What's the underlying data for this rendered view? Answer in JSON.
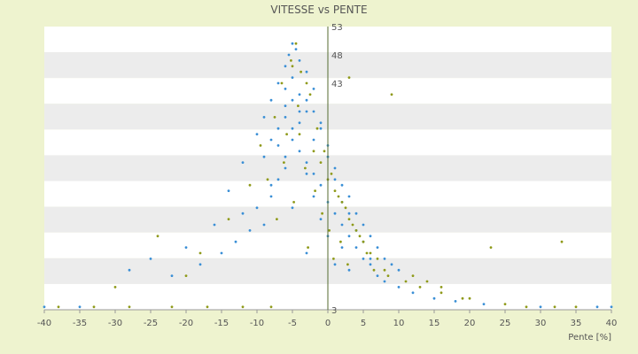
{
  "chart_data": {
    "type": "scatter",
    "title": "VITESSE vs PENTE",
    "xlabel": "Pente [%]",
    "ylabel": "",
    "xlim": [
      -40,
      40
    ],
    "ylim": [
      3,
      53
    ],
    "x_ticks": [
      -40,
      -35,
      -30,
      -25,
      -20,
      -15,
      -10,
      -5,
      0,
      5,
      10,
      15,
      20,
      25,
      30,
      35,
      40
    ],
    "y_tick_labels": [
      {
        "value": 53,
        "label": "53"
      },
      {
        "value": 48,
        "label": "48"
      },
      {
        "value": 43,
        "label": "43"
      },
      {
        "value": 3,
        "label": "3"
      }
    ],
    "grid": "horizontal bands",
    "legend": "none",
    "colors": {
      "series_a": "#3a8fd6",
      "series_b": "#8f9a1a",
      "band_light": "#ffffff",
      "band_dark": "#ececec",
      "axis": "#556b2f",
      "background": "#eef3cf"
    },
    "series": [
      {
        "color": "#3a8fd6",
        "points": [
          [
            -5,
            50
          ],
          [
            -4.5,
            49
          ],
          [
            -5.5,
            48
          ],
          [
            -4,
            47
          ],
          [
            -6,
            46
          ],
          [
            -3,
            45
          ],
          [
            -5,
            44
          ],
          [
            -7,
            43
          ],
          [
            -2,
            42
          ],
          [
            -4,
            41
          ],
          [
            -8,
            40
          ],
          [
            -6,
            39
          ],
          [
            -3,
            38
          ],
          [
            -9,
            37
          ],
          [
            -1,
            36
          ],
          [
            -5,
            35
          ],
          [
            -10,
            34
          ],
          [
            -2,
            33
          ],
          [
            -7,
            32
          ],
          [
            -4,
            31
          ],
          [
            0,
            30
          ],
          [
            -12,
            29
          ],
          [
            -6,
            28
          ],
          [
            -3,
            27
          ],
          [
            1,
            26
          ],
          [
            -8,
            25
          ],
          [
            -14,
            24
          ],
          [
            -2,
            23
          ],
          [
            2,
            22
          ],
          [
            -5,
            21
          ],
          [
            3,
            20
          ],
          [
            -1,
            19
          ],
          [
            -9,
            18
          ],
          [
            4,
            17
          ],
          [
            0,
            16
          ],
          [
            5,
            15
          ],
          [
            2,
            14
          ],
          [
            -3,
            13
          ],
          [
            6,
            12
          ],
          [
            1,
            11
          ],
          [
            3,
            10
          ],
          [
            7,
            9
          ],
          [
            -16,
            18
          ],
          [
            -20,
            14
          ],
          [
            -25,
            12
          ],
          [
            -28,
            10
          ],
          [
            -12,
            20
          ],
          [
            8,
            8
          ],
          [
            10,
            7
          ],
          [
            12,
            6
          ],
          [
            15,
            5
          ],
          [
            18,
            4.5
          ],
          [
            -6,
            30
          ],
          [
            -5,
            33
          ],
          [
            -4,
            36
          ],
          [
            -3,
            29
          ],
          [
            -2,
            27
          ],
          [
            -1,
            25
          ],
          [
            0,
            22
          ],
          [
            1,
            20
          ],
          [
            2,
            18
          ],
          [
            3,
            16
          ],
          [
            4,
            14
          ],
          [
            5,
            12
          ],
          [
            6,
            11
          ],
          [
            -7,
            26
          ],
          [
            -8,
            23
          ],
          [
            -10,
            21
          ],
          [
            -11,
            17
          ],
          [
            -13,
            15
          ],
          [
            -15,
            13
          ],
          [
            -18,
            11
          ],
          [
            -22,
            9
          ],
          [
            22,
            4
          ],
          [
            30,
            3.5
          ],
          [
            -35,
            3.5
          ],
          [
            -40,
            3.5
          ],
          [
            38,
            3.5
          ],
          [
            40,
            3.5
          ],
          [
            -3,
            40
          ],
          [
            -2,
            38
          ],
          [
            -1,
            35
          ],
          [
            0,
            32
          ],
          [
            1,
            28
          ],
          [
            2,
            25
          ],
          [
            3,
            23
          ],
          [
            4,
            20
          ],
          [
            5,
            18
          ],
          [
            6,
            16
          ],
          [
            7,
            14
          ],
          [
            8,
            12
          ],
          [
            9,
            11
          ],
          [
            10,
            10
          ],
          [
            -6,
            42
          ],
          [
            -5,
            40
          ],
          [
            -4,
            38
          ],
          [
            -7,
            35
          ],
          [
            -6,
            37
          ],
          [
            -8,
            33
          ],
          [
            -9,
            30
          ]
        ]
      },
      {
        "color": "#8f9a1a",
        "points": [
          [
            -4.5,
            50
          ],
          [
            -5.2,
            47
          ],
          [
            -3.8,
            45
          ],
          [
            -6.5,
            43
          ],
          [
            -2.5,
            41
          ],
          [
            -4.2,
            39
          ],
          [
            -7.5,
            37
          ],
          [
            -1.5,
            35
          ],
          [
            -5.8,
            34
          ],
          [
            -9.5,
            32
          ],
          [
            -0.5,
            31
          ],
          [
            -6.2,
            29
          ],
          [
            -3.2,
            28
          ],
          [
            0.5,
            27
          ],
          [
            -8.5,
            26
          ],
          [
            -11,
            25
          ],
          [
            -1.8,
            24
          ],
          [
            1.5,
            23
          ],
          [
            -4.8,
            22
          ],
          [
            2.5,
            21
          ],
          [
            -0.8,
            20
          ],
          [
            -7.2,
            19
          ],
          [
            3.5,
            18
          ],
          [
            0.2,
            17
          ],
          [
            4.5,
            16
          ],
          [
            1.8,
            15
          ],
          [
            -2.8,
            14
          ],
          [
            5.5,
            13
          ],
          [
            0.8,
            12
          ],
          [
            2.8,
            11
          ],
          [
            6.5,
            10
          ],
          [
            8.5,
            9
          ],
          [
            11,
            8
          ],
          [
            13,
            7
          ],
          [
            16,
            6
          ],
          [
            19,
            5
          ],
          [
            23,
            14
          ],
          [
            33,
            15
          ],
          [
            -24,
            16
          ],
          [
            -18,
            13
          ],
          [
            -14,
            19
          ],
          [
            -20,
            9
          ],
          [
            -30,
            7
          ],
          [
            3,
            44
          ],
          [
            9,
            41
          ],
          [
            -5,
            46
          ],
          [
            -3,
            43
          ],
          [
            -4,
            34
          ],
          [
            -2,
            31
          ],
          [
            -1,
            29
          ],
          [
            0,
            26
          ],
          [
            1,
            24
          ],
          [
            2,
            22
          ],
          [
            3,
            19
          ],
          [
            4,
            17
          ],
          [
            5,
            15
          ],
          [
            6,
            13
          ],
          [
            7,
            12
          ],
          [
            8,
            10
          ],
          [
            12,
            9
          ],
          [
            14,
            8
          ],
          [
            16,
            7
          ],
          [
            20,
            5
          ],
          [
            25,
            4
          ],
          [
            35,
            3.5
          ],
          [
            -38,
            3.5
          ],
          [
            -33,
            3.5
          ],
          [
            -28,
            3.5
          ],
          [
            -22,
            3.5
          ],
          [
            -17,
            3.5
          ],
          [
            -12,
            3.5
          ],
          [
            -8,
            3.5
          ],
          [
            28,
            3.5
          ],
          [
            32,
            3.5
          ]
        ]
      }
    ]
  }
}
